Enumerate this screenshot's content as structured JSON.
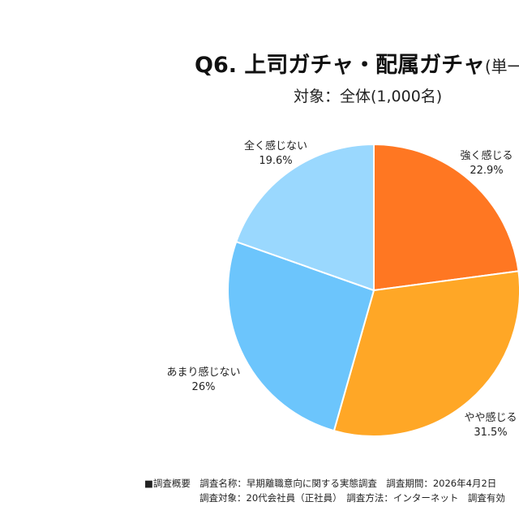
{
  "chart_data": {
    "type": "pie",
    "title": "Q6. 上司ガチャ・配属ガチャ",
    "title_suffix": "(単一回",
    "subtitle": "対象：全体(1,000名)",
    "start_angle": "12 o'clock",
    "direction": "clockwise",
    "slices": [
      {
        "label": "強く感じる",
        "value": 22.9,
        "value_label": "22.9%",
        "color": "#FF7722"
      },
      {
        "label": "やや感じる",
        "value": 31.5,
        "value_label": "31.5%",
        "color": "#FFA726"
      },
      {
        "label": "あまり感じない",
        "value": 26,
        "value_label": "26%",
        "color": "#6CC5FC"
      },
      {
        "label": "全く感じない",
        "value": 19.6,
        "value_label": "19.6%",
        "color": "#9AD8FE"
      }
    ]
  },
  "footer": {
    "line1": "■調査概要　調査名称：早期離職意向に関する実態調査　調査期間：2026年4月2日",
    "line2": "調査対象：20代会社員（正社員）　調査方法：インターネット　調査有効"
  }
}
